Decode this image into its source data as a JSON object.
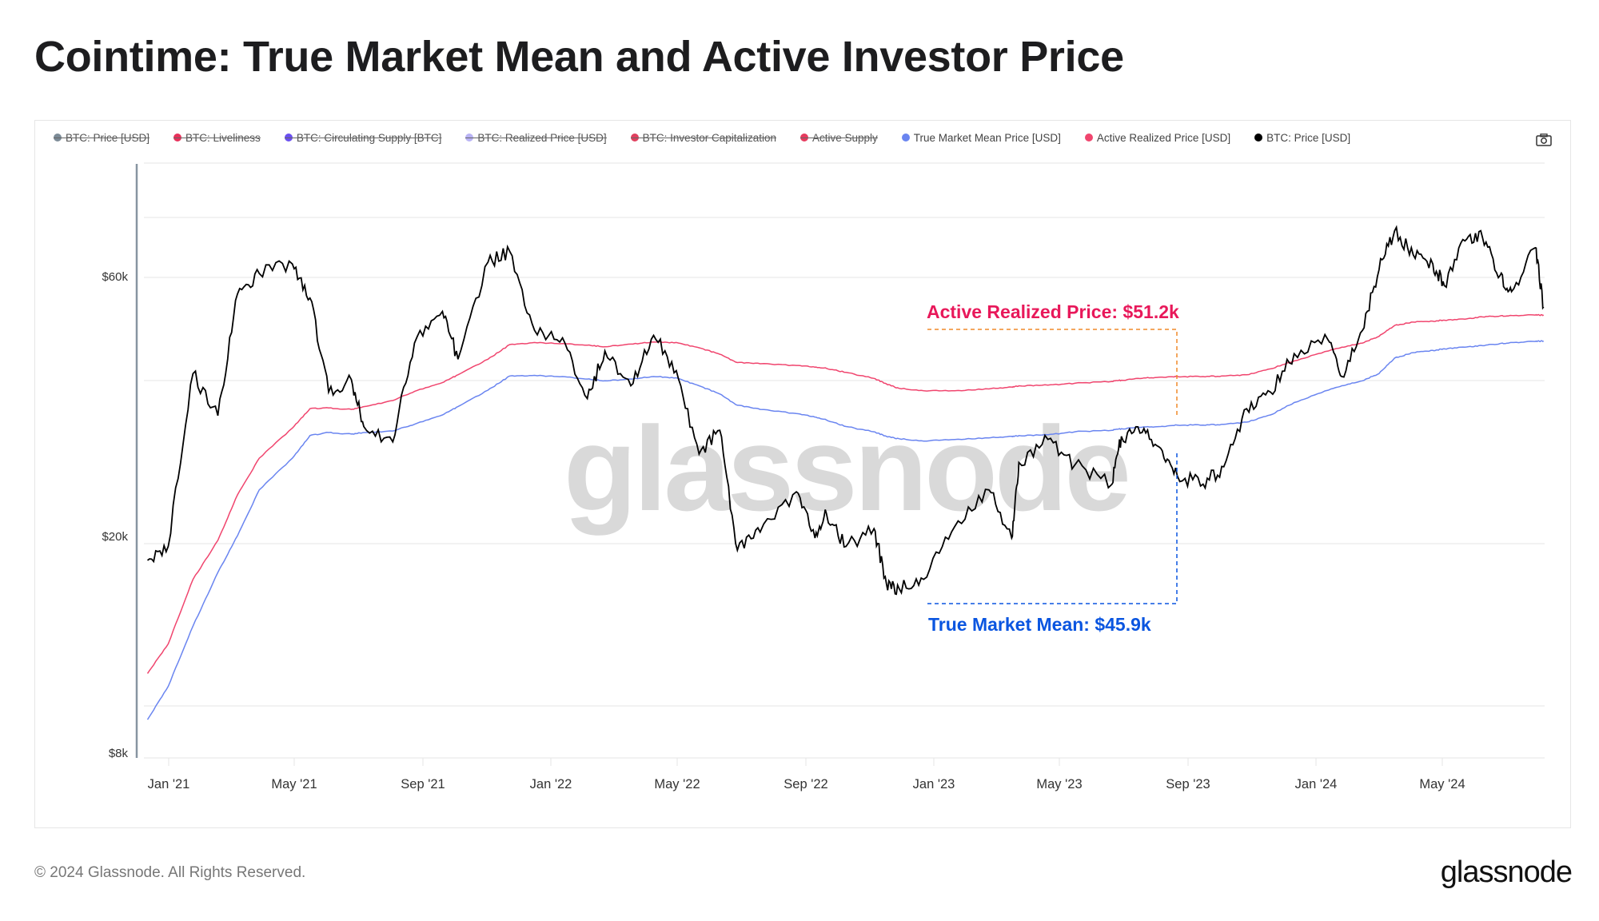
{
  "header": {
    "title": "Cointime: True Market Mean and Active Investor Price"
  },
  "legend": [
    {
      "label": "BTC: Price [USD]",
      "color": "#7c8b97",
      "active": false
    },
    {
      "label": "BTC: Liveliness",
      "color": "#e8305a",
      "active": false
    },
    {
      "label": "BTC: Circulating Supply [BTC]",
      "color": "#6a4ff0",
      "active": false
    },
    {
      "label": "BTC: Realized Price [USD]",
      "color": "#b9b3f5",
      "active": false
    },
    {
      "label": "BTC: Investor Capitalization",
      "color": "#e0405e",
      "active": false
    },
    {
      "label": "Active Supply",
      "color": "#e63b5e",
      "active": false
    },
    {
      "label": "True Market Mean Price [USD]",
      "color": "#6a85f0",
      "active": true
    },
    {
      "label": "Active Realized Price [USD]",
      "color": "#f0456e",
      "active": true
    },
    {
      "label": "BTC: Price [USD]",
      "color": "#000000",
      "active": true
    }
  ],
  "toolbar": {
    "camera_icon": "camera-icon"
  },
  "annotations": {
    "active_realized": "Active Realized Price: $51.2k",
    "true_market_mean": "True Market Mean: $45.9k"
  },
  "watermark": "glassnode",
  "footer": {
    "copyright": "© 2024 Glassnode. All Rights Reserved.",
    "logo": "glassnode"
  },
  "chart_data": {
    "type": "line",
    "title": "Cointime: True Market Mean and Active Investor Price",
    "xlabel": "",
    "ylabel": "",
    "yscale": "log",
    "ylim": [
      8000,
      97000
    ],
    "yticks": [
      "$8k",
      "$20k",
      "$60k"
    ],
    "xticks": [
      "Jan '21",
      "May '21",
      "Sep '21",
      "Jan '22",
      "May '22",
      "Sep '22",
      "Jan '23",
      "May '23",
      "Sep '23",
      "Jan '24",
      "May '24"
    ],
    "grid": true,
    "legend_position": "top",
    "x": [
      "2020-11-25",
      "2020-12-15",
      "2021-01-08",
      "2021-02-01",
      "2021-02-20",
      "2021-03-13",
      "2021-04-14",
      "2021-05-01",
      "2021-05-19",
      "2021-06-10",
      "2021-06-22",
      "2021-07-20",
      "2021-08-10",
      "2021-09-06",
      "2021-09-21",
      "2021-10-20",
      "2021-11-10",
      "2021-12-04",
      "2021-12-31",
      "2022-01-24",
      "2022-02-10",
      "2022-03-07",
      "2022-03-29",
      "2022-04-20",
      "2022-05-12",
      "2022-06-01",
      "2022-06-18",
      "2022-07-10",
      "2022-08-14",
      "2022-09-01",
      "2022-09-12",
      "2022-10-01",
      "2022-10-28",
      "2022-11-09",
      "2022-11-21",
      "2022-12-15",
      "2023-01-14",
      "2023-02-16",
      "2023-03-10",
      "2023-03-17",
      "2023-04-14",
      "2023-05-10",
      "2023-06-15",
      "2023-06-24",
      "2023-07-14",
      "2023-08-01",
      "2023-08-17",
      "2023-09-11",
      "2023-10-01",
      "2023-10-23",
      "2023-11-15",
      "2023-12-08",
      "2024-01-10",
      "2024-01-23",
      "2024-02-12",
      "2024-02-28",
      "2024-03-14",
      "2024-04-01",
      "2024-04-20",
      "2024-05-01",
      "2024-05-21",
      "2024-06-07",
      "2024-06-24",
      "2024-07-05",
      "2024-07-28",
      "2024-08-05"
    ],
    "series": [
      {
        "name": "BTC: Price [USD]",
        "color": "#000000",
        "values": [
          18200,
          19300,
          40000,
          33500,
          56000,
          61000,
          63500,
          55000,
          37000,
          39000,
          32000,
          30000,
          45500,
          52000,
          42500,
          64000,
          67000,
          48000,
          46500,
          36000,
          44000,
          38000,
          47000,
          40500,
          28500,
          31500,
          19000,
          20500,
          24300,
          20000,
          22200,
          19300,
          20800,
          16500,
          16200,
          16800,
          21000,
          24500,
          20000,
          27500,
          30300,
          27200,
          25100,
          30700,
          31200,
          29200,
          26000,
          25100,
          27000,
          34500,
          37000,
          43500,
          46000,
          39500,
          48000,
          62000,
          73000,
          66000,
          63500,
          58000,
          70000,
          71000,
          60500,
          56500,
          68000,
          53000
        ]
      },
      {
        "name": "Active Realized Price [USD]",
        "color": "#f0456e",
        "values": [
          11300,
          12800,
          16800,
          19800,
          24000,
          28000,
          31800,
          34500,
          34600,
          34400,
          34800,
          35700,
          37100,
          38500,
          39800,
          42500,
          45200,
          45600,
          45400,
          45100,
          44800,
          45300,
          45700,
          45600,
          44600,
          43400,
          41900,
          41700,
          41400,
          41100,
          40900,
          40200,
          39200,
          38300,
          37600,
          37200,
          37200,
          37500,
          37800,
          38000,
          38100,
          38400,
          38700,
          38900,
          39200,
          39400,
          39500,
          39500,
          39600,
          39800,
          40800,
          42200,
          44000,
          44700,
          45500,
          46800,
          49000,
          49700,
          49900,
          50100,
          50300,
          50800,
          51000,
          51100,
          51200,
          51200
        ]
      },
      {
        "name": "True Market Mean Price [USD]",
        "color": "#6a85f0",
        "values": [
          9300,
          10700,
          13800,
          17300,
          20200,
          24500,
          28000,
          30800,
          31200,
          31000,
          31200,
          31400,
          32300,
          33600,
          34800,
          37300,
          39600,
          39700,
          39500,
          39100,
          38800,
          39100,
          39500,
          39300,
          38000,
          36700,
          35000,
          34400,
          33800,
          33300,
          32900,
          32000,
          31300,
          30700,
          30400,
          30100,
          30300,
          30500,
          30700,
          30800,
          30900,
          31300,
          31500,
          31700,
          31900,
          32000,
          32200,
          32200,
          32300,
          32600,
          33600,
          35400,
          37300,
          38000,
          38800,
          40000,
          42700,
          43700,
          44100,
          44400,
          44700,
          45000,
          45400,
          45600,
          45800,
          45900
        ]
      }
    ]
  }
}
